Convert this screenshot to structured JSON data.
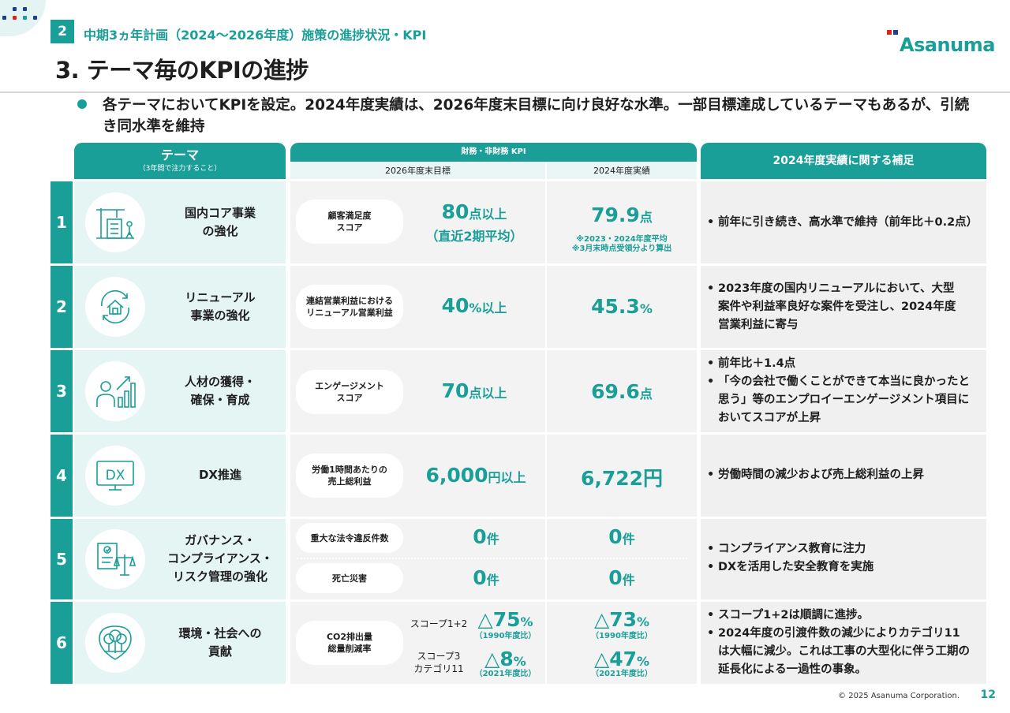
{
  "header": {
    "section_number": "2",
    "section_title": "中期3ヵ年計画（2024～2026年度）施策の進捗状況・KPI",
    "page_title": "3. テーマ毎のKPIの進捗",
    "logo_text": "Asanuma"
  },
  "lead": {
    "text": "各テーマにおいてKPIを設定。2024年度実績は、2026年度末目標に向け良好な水準。一部目標達成しているテーマもあるが、引続き同水準を維持"
  },
  "table": {
    "theme_header": "テーマ",
    "theme_subheader": "（3年間で注力すること）",
    "kpi_header": "財務・非財務 KPI",
    "target_header": "2026年度末目標",
    "actual_header": "2024年度実績",
    "note_header": "2024年度実績に関する補足",
    "rows": [
      {
        "num": "1",
        "theme_l1": "国内コア事業",
        "theme_l2": "の強化",
        "icon": "construction-site-icon",
        "kpi_l1": "顧客満足度",
        "kpi_l2": "スコア",
        "target_num": "80",
        "target_unit": "点以上",
        "target_sub": "（直近2期平均）",
        "actual_num": "79.9",
        "actual_unit": "点",
        "actual_note1": "※2023・2024年度平均",
        "actual_note2": "※3月末時点受領分より算出",
        "notes": [
          "前年に引き続き、高水準で維持（前年比＋0.2点）"
        ]
      },
      {
        "num": "2",
        "theme_l1": "リニューアル",
        "theme_l2": "事業の強化",
        "icon": "house-renewal-icon",
        "kpi_l1": "連結営業利益における",
        "kpi_l2": "リニューアル営業利益",
        "target_num": "40",
        "target_unit": "%以上",
        "actual_num": "45.3",
        "actual_unit": "%",
        "notes": [
          "2023年度の国内リニューアルにおいて、大型",
          "案件や利益率良好な案件を受注し、2024年度",
          "営業利益に寄与"
        ]
      },
      {
        "num": "3",
        "theme_l1": "人材の獲得・",
        "theme_l2": "確保・育成",
        "icon": "person-growth-icon",
        "kpi_l1": "エンゲージメント",
        "kpi_l2": "スコア",
        "target_num": "70",
        "target_unit": "点以上",
        "actual_num": "69.6",
        "actual_unit": "点",
        "notes": [
          "前年比＋1.4点",
          "「今の会社で働くことができて本当に良かったと",
          "思う」等のエンプロイーエンゲージメント項目に",
          "おいてスコアが上昇"
        ]
      },
      {
        "num": "4",
        "theme_l1": "DX推進",
        "theme_l2": "",
        "icon": "dx-screen-icon",
        "icon_label": "DX",
        "kpi_l1": "労働1時間あたりの",
        "kpi_l2": "売上総利益",
        "target_num": "6,000",
        "target_unit": "円以上",
        "actual_num": "6,722",
        "actual_unit": "円",
        "notes": [
          "労働時間の減少および売上総利益の上昇"
        ]
      },
      {
        "num": "5",
        "theme_l1": "ガバナンス・",
        "theme_l2": "コンプライアンス・",
        "theme_l3": "リスク管理の強化",
        "icon": "compliance-scale-icon",
        "kpi_a": "重大な法令違反件数",
        "target_a_num": "0",
        "target_a_unit": "件",
        "actual_a_num": "0",
        "actual_a_unit": "件",
        "kpi_b": "死亡災害",
        "target_b_num": "0",
        "target_b_unit": "件",
        "actual_b_num": "0",
        "actual_b_unit": "件",
        "notes": [
          "コンプライアンス教育に注力",
          "DXを活用した安全教育を実施"
        ]
      },
      {
        "num": "6",
        "theme_l1": "環境・社会への",
        "theme_l2": "貢献",
        "icon": "environment-tree-icon",
        "kpi_l1": "CO2排出量",
        "kpi_l2": "総量削減率",
        "scope_a": "スコープ1+2",
        "target_a": "△75",
        "target_a_unit": "%",
        "target_a_base": "（1990年度比）",
        "actual_a": "△73",
        "actual_a_unit": "%",
        "actual_a_base": "（1990年度比）",
        "scope_b_l1": "スコープ3",
        "scope_b_l2": "カテゴリ11",
        "target_b": "△8",
        "target_b_unit": "%",
        "target_b_base": "（2021年度比）",
        "actual_b": "△47",
        "actual_b_unit": "%",
        "actual_b_base": "（2021年度比）",
        "notes": [
          "スコープ1+2は順調に進捗。",
          "2024年度の引渡件数の減少によりカテゴリ11",
          "は大幅に減少。これは工事の大型化に伴う工期の",
          "延長化による一過性の事象。"
        ]
      }
    ]
  },
  "footer": {
    "copyright": "© 2025 Asanuma Corporation.",
    "page_number": "12"
  },
  "colors": {
    "accent": "#1a9e98",
    "logo_dot_red": "#e2231a",
    "logo_dot_blue": "#1d3f8f"
  }
}
